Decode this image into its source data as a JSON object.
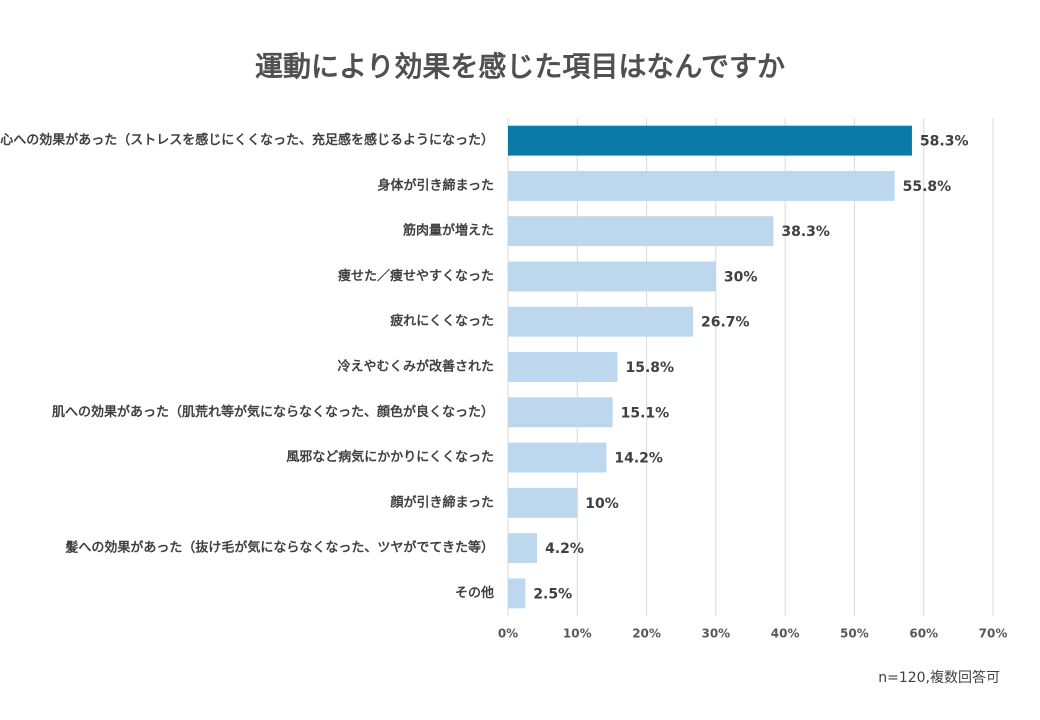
{
  "chart_data": {
    "type": "bar",
    "orientation": "horizontal",
    "title": "運動により効果を感じた項目はなんですか",
    "note": "n=120,複数回答可",
    "categories": [
      "心への効果があった（ストレスを感じにくくなった、充足感を感じるようになった）",
      "身体が引き締まった",
      "筋肉量が増えた",
      "痩せた／痩せやすくなった",
      "疲れにくくなった",
      "冷えやむくみが改善された",
      "肌への効果があった（肌荒れ等が気にならなくなった、顔色が良くなった）",
      "風邪など病気にかかりにくくなった",
      "顔が引き締まった",
      "髪への効果があった（抜け毛が気にならなくなった、ツヤがでてきた等）",
      "その他"
    ],
    "values": [
      58.3,
      55.8,
      38.3,
      30,
      26.7,
      15.8,
      15.1,
      14.2,
      10,
      4.2,
      2.5
    ],
    "value_labels": [
      "58.3%",
      "55.8%",
      "38.3%",
      "30%",
      "26.7%",
      "15.8%",
      "15.1%",
      "14.2%",
      "10%",
      "4.2%",
      "2.5%"
    ],
    "colors": [
      "#0a7aa6",
      "#bdd7ee",
      "#bdd7ee",
      "#bdd7ee",
      "#bdd7ee",
      "#bdd7ee",
      "#bdd7ee",
      "#bdd7ee",
      "#bdd7ee",
      "#bdd7ee",
      "#bdd7ee"
    ],
    "xlim": [
      0,
      70
    ],
    "xticks": [
      {
        "value": 0,
        "label": "0%"
      },
      {
        "value": 10,
        "label": "10%"
      },
      {
        "value": 20,
        "label": "20%"
      },
      {
        "value": 30,
        "label": "30%"
      },
      {
        "value": 40,
        "label": "40%"
      },
      {
        "value": 50,
        "label": "50%"
      },
      {
        "value": 60,
        "label": "60%"
      },
      {
        "value": 70,
        "label": "70%"
      }
    ],
    "grid": true
  }
}
